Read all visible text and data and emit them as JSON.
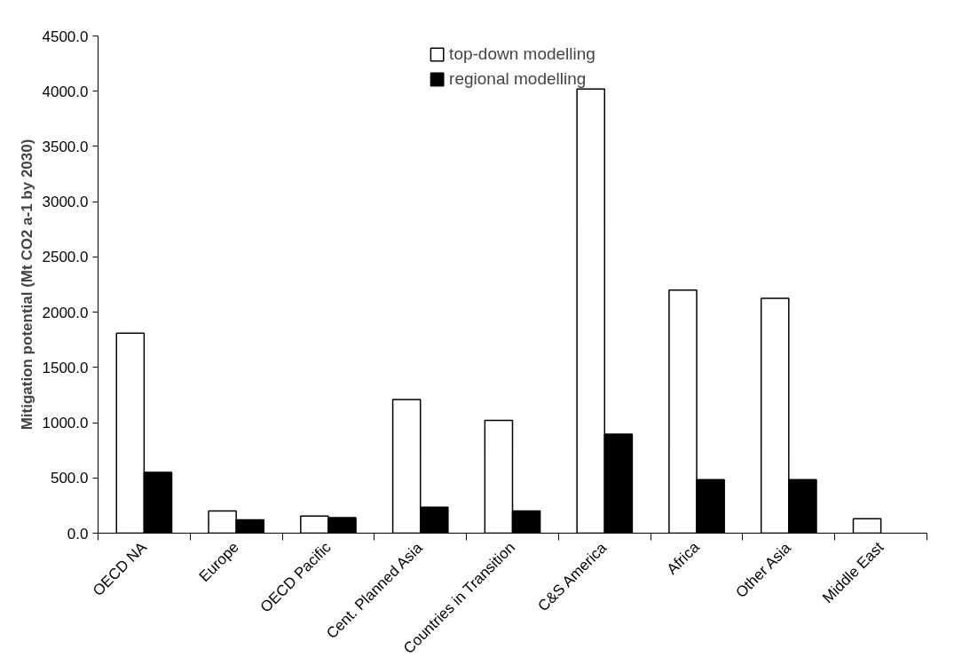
{
  "chart_data": {
    "type": "bar",
    "ylabel": "Mitigation potential (Mt CO2 a-1 by 2030)",
    "categories": [
      "OECD NA",
      "Europe",
      "OECD Pacific",
      "Cent. Planned Asia",
      "Countries in Transition",
      "C&S America",
      "Africa",
      "Other Asia",
      "Middle East"
    ],
    "series": [
      {
        "name": "top-down modelling",
        "color": "#ffffff",
        "values": [
          1810,
          200,
          155,
          1210,
          1020,
          4020,
          2200,
          2125,
          130
        ]
      },
      {
        "name": "regional modelling",
        "color": "#000000",
        "values": [
          550,
          120,
          140,
          235,
          200,
          895,
          485,
          485,
          null
        ]
      }
    ],
    "ylim": [
      0,
      4500
    ],
    "yticks": [
      {
        "value": 0,
        "label": "0.0"
      },
      {
        "value": 500,
        "label": "500.0"
      },
      {
        "value": 1000,
        "label": "1000.0"
      },
      {
        "value": 1500,
        "label": "1500.0"
      },
      {
        "value": 2000,
        "label": "2000.0"
      },
      {
        "value": 2500,
        "label": "2500.0"
      },
      {
        "value": 3000,
        "label": "3000.0"
      },
      {
        "value": 3500,
        "label": "3500.0"
      },
      {
        "value": 4000,
        "label": "4000.0"
      },
      {
        "value": 4500,
        "label": "4500.0"
      }
    ],
    "grid": false,
    "legend": "top"
  }
}
